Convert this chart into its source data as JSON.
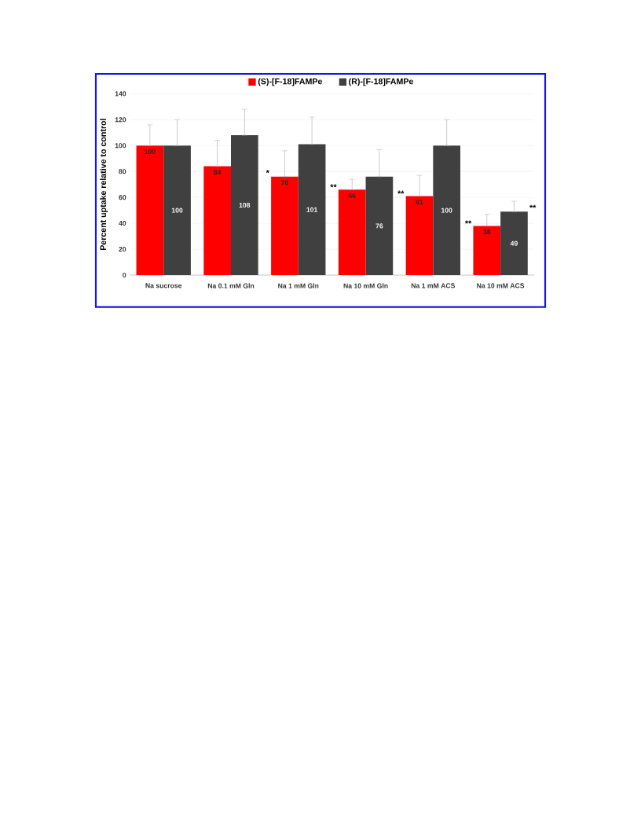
{
  "chart_data": {
    "type": "bar",
    "ylabel": "Percent uptake relative to control",
    "categories": [
      "Na sucrose",
      "Na 0.1 mM Gln",
      "Na 1 mM Gln",
      "Na 10 mM Gln",
      "Na 1 mM ACS",
      "Na 10 mM ACS"
    ],
    "series": [
      {
        "name": "(S)-[F-18]FAMPe",
        "color": "#ff0000",
        "values": [
          100,
          84,
          76,
          66,
          61,
          38
        ],
        "errors": [
          [
            100,
            116
          ],
          [
            84,
            104
          ],
          [
            76,
            96
          ],
          [
            66,
            74
          ],
          [
            61,
            77
          ],
          [
            38,
            47
          ]
        ]
      },
      {
        "name": "(R)-[F-18]FAMPe",
        "color": "#404040",
        "values": [
          100,
          108,
          101,
          76,
          100,
          49
        ],
        "errors": [
          [
            100,
            120
          ],
          [
            108,
            128
          ],
          [
            101,
            122
          ],
          [
            76,
            97
          ],
          [
            100,
            120
          ],
          [
            49,
            57
          ]
        ]
      }
    ],
    "ylim": [
      0,
      140
    ],
    "yticks": [
      0,
      20,
      40,
      60,
      80,
      100,
      120,
      140
    ],
    "data_labels": true,
    "legend": "top",
    "grid": "y",
    "annotations": [
      "*",
      "**",
      "**",
      "**",
      "**"
    ]
  }
}
